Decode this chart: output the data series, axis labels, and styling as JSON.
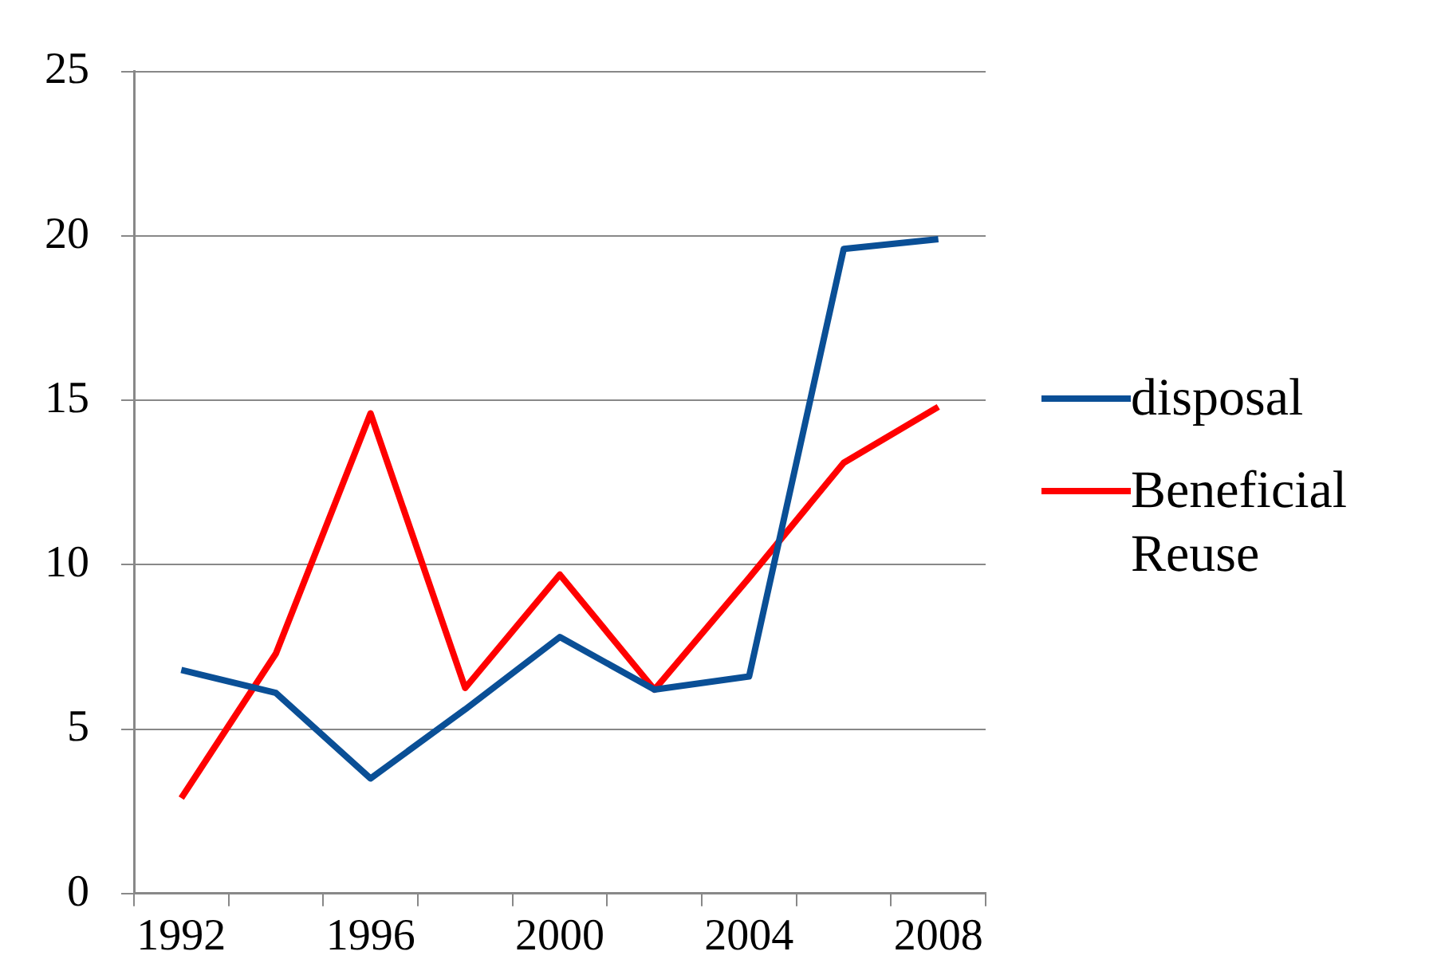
{
  "chart_data": {
    "type": "line",
    "categories": [
      "1992",
      null,
      "1996",
      null,
      "2000",
      null,
      "2004",
      null,
      "2008"
    ],
    "series": [
      {
        "name": "disposal",
        "color": "#0a4f96",
        "values": [
          6.8,
          6.1,
          3.5,
          5.6,
          7.8,
          6.2,
          6.6,
          19.6,
          19.9
        ]
      },
      {
        "name": "Beneficial Reuse",
        "color": "#ff0000",
        "values": [
          2.9,
          7.3,
          14.6,
          6.25,
          9.7,
          6.2,
          9.6,
          13.1,
          14.8
        ]
      }
    ],
    "ylim": [
      0,
      25
    ],
    "yticks": [
      0,
      5,
      10,
      15,
      20,
      25
    ],
    "grid": "y",
    "legend": "right",
    "marker": "none",
    "line_style": "solid"
  }
}
